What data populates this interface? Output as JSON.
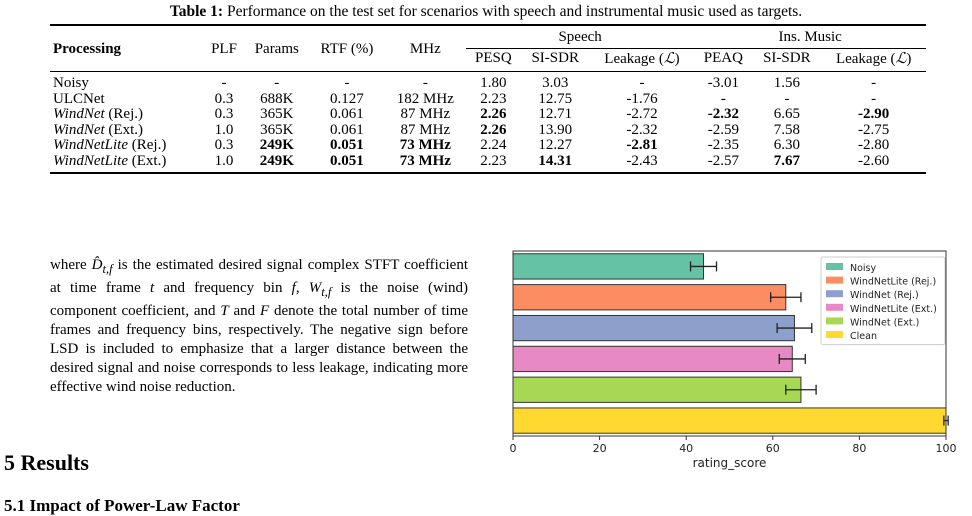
{
  "table": {
    "caption_label": "Table 1:",
    "caption_text": "Performance on the test set for scenarios with speech and instrumental music used as targets.",
    "header": {
      "processing": "Processing",
      "plf": "PLF",
      "params": "Params",
      "rtf": "RTF (%)",
      "mhz": "MHz",
      "speech": "Speech",
      "ins_music": "Ins. Music",
      "pesq": "PESQ",
      "si_sdr": "SI-SDR",
      "leakage": "Leakage (",
      "leakage_sym": "ℒ",
      "leakage_close": ")",
      "peaq": "PEAQ",
      "si_sdr2": "SI-SDR",
      "leakage2": "Leakage (",
      "leakage2_close": ")"
    },
    "rows": [
      {
        "name": "Noisy",
        "suffix": "",
        "plf": "-",
        "params": "-",
        "rtf": "-",
        "mhz": "-",
        "pesq": "1.80",
        "sisdr_s": "3.03",
        "leak_s": "-",
        "peaq": "-3.01",
        "sisdr_m": "1.56",
        "leak_m": "-"
      },
      {
        "name": "ULCNet",
        "suffix": "",
        "plf": "0.3",
        "params": "688K",
        "rtf": "0.127",
        "mhz": "182 MHz",
        "pesq": "2.23",
        "sisdr_s": "12.75",
        "leak_s": "-1.76",
        "peaq": "-",
        "sisdr_m": "-",
        "leak_m": "-"
      },
      {
        "name": "WindNet",
        "suffix": " (Rej.)",
        "plf": "0.3",
        "params": "365K",
        "rtf": "0.061",
        "mhz": "87 MHz",
        "pesq": "2.26",
        "sisdr_s": "12.71",
        "leak_s": "-2.72",
        "peaq": "-2.32",
        "sisdr_m": "6.65",
        "leak_m": "-2.90"
      },
      {
        "name": "WindNet",
        "suffix": " (Ext.)",
        "plf": "1.0",
        "params": "365K",
        "rtf": "0.061",
        "mhz": "87 MHz",
        "pesq": "2.26",
        "sisdr_s": "13.90",
        "leak_s": "-2.32",
        "peaq": "-2.59",
        "sisdr_m": "7.58",
        "leak_m": "-2.75"
      },
      {
        "name": "WindNetLite",
        "suffix": " (Rej.)",
        "plf": "0.3",
        "params": "249K",
        "rtf": "0.051",
        "mhz": "73 MHz",
        "pesq": "2.24",
        "sisdr_s": "12.27",
        "leak_s": "-2.81",
        "peaq": "-2.35",
        "sisdr_m": "6.30",
        "leak_m": "-2.80"
      },
      {
        "name": "WindNetLite",
        "suffix": " (Ext.)",
        "plf": "1.0",
        "params": "249K",
        "rtf": "0.051",
        "mhz": "73 MHz",
        "pesq": "2.23",
        "sisdr_s": "14.31",
        "leak_s": "-2.43",
        "peaq": "-2.57",
        "sisdr_m": "7.67",
        "leak_m": "-2.60"
      }
    ]
  },
  "paragraph": {
    "t1": " where ",
    "sym_d": "D̂",
    "sub_d": "t,f",
    "t2": " is the estimated desired signal complex STFT coefficient at time frame ",
    "sym_t": "t",
    "t3": " and frequency bin ",
    "sym_f": "f",
    "t4": ", ",
    "sym_w": "W",
    "sub_w": "t,f",
    "t5": " is the noise (wind) component coefficient, and ",
    "sym_T": "T",
    "t6": " and ",
    "sym_F": "F",
    "t7": " denote the total number of time frames and frequency bins, respectively. The negative sign before LSD is included to emphasize that a larger distance between the desired signal and noise corresponds to less leakage, indicating more effective wind noise reduction."
  },
  "headings": {
    "section": "5  Results",
    "subsection": "5.1  Impact of Power-Law Factor"
  },
  "chart_data": {
    "type": "bar",
    "orientation": "horizontal",
    "categories": [
      "Noisy",
      "WindNetLite (Rej.)",
      "WindNet (Rej.)",
      "WindNetLite (Ext.)",
      "WindNet (Ext.)",
      "Clean"
    ],
    "values": [
      44,
      63,
      65,
      64.5,
      66.5,
      100
    ],
    "errors": [
      3,
      3.5,
      4,
      3,
      3.5,
      0.5
    ],
    "colors": [
      "#66c2a5",
      "#fc8d62",
      "#8da0cb",
      "#e78ac3",
      "#a6d854",
      "#ffd92f"
    ],
    "xlabel": "rating_score",
    "xlim": [
      0,
      100
    ],
    "xticks": [
      0,
      20,
      40,
      60,
      80,
      100
    ],
    "grid": false,
    "legend_position": "top-right",
    "legend": [
      "Noisy",
      "WindNetLite (Rej.)",
      "WindNet (Rej.)",
      "WindNetLite (Ext.)",
      "WindNet (Ext.)",
      "Clean"
    ]
  }
}
